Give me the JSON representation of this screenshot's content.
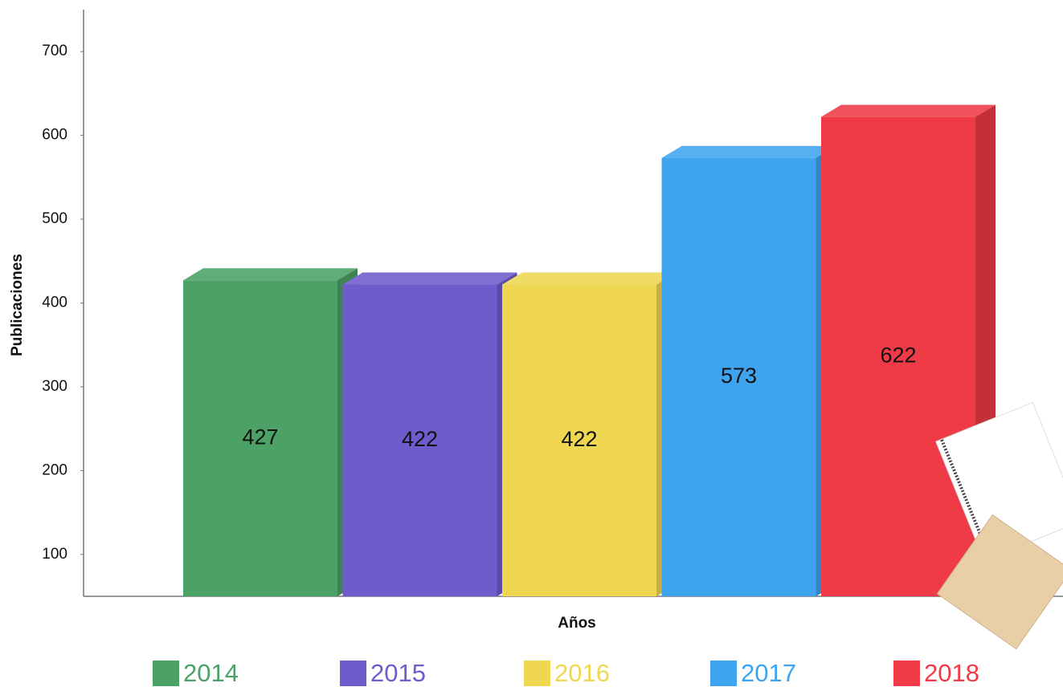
{
  "chart_data": {
    "type": "bar",
    "y_label": "Publicaciones",
    "x_label": "Años",
    "categories": [
      "2014",
      "2015",
      "2016",
      "2017",
      "2018"
    ],
    "values": [
      427,
      422,
      422,
      573,
      622
    ],
    "colors": [
      "#4ca266",
      "#705bcc",
      "#f0d752",
      "#3ea4ef",
      "#ee3b47"
    ],
    "ylim": [
      50,
      750
    ],
    "yticks": [
      100,
      200,
      300,
      400,
      500,
      600,
      700
    ]
  }
}
